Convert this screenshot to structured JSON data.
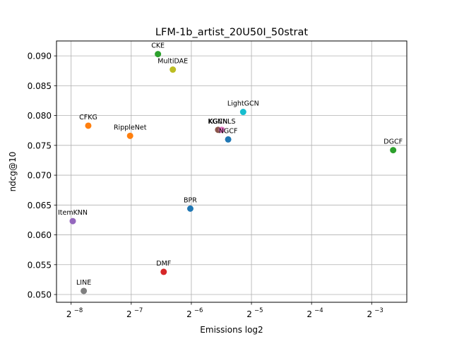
{
  "chart_data": {
    "type": "scatter",
    "title": "LFM-1b_artist_20U50I_50strat",
    "xlabel": "Emissions log2",
    "ylabel": "ndcg@10",
    "x_scale": "log2",
    "xlim": [
      0.0033,
      0.1874
    ],
    "ylim": [
      0.0487,
      0.0925
    ],
    "grid": true,
    "x_ticks": [
      {
        "value": 0.00390625,
        "base": "2",
        "exp": "−8"
      },
      {
        "value": 0.0078125,
        "base": "2",
        "exp": "−7"
      },
      {
        "value": 0.015625,
        "base": "2",
        "exp": "−6"
      },
      {
        "value": 0.03125,
        "base": "2",
        "exp": "−5"
      },
      {
        "value": 0.0625,
        "base": "2",
        "exp": "−4"
      },
      {
        "value": 0.125,
        "base": "2",
        "exp": "−3"
      }
    ],
    "y_ticks": [
      "0.050",
      "0.055",
      "0.060",
      "0.065",
      "0.070",
      "0.075",
      "0.080",
      "0.085",
      "0.090"
    ],
    "points": [
      {
        "label": "CKE",
        "x": 0.01063,
        "y": 0.0903,
        "color": "#2ca02c"
      },
      {
        "label": "MultiDAE",
        "x": 0.01262,
        "y": 0.0877,
        "color": "#bcbd22"
      },
      {
        "label": "LightGCN",
        "x": 0.0284,
        "y": 0.0806,
        "color": "#17becf"
      },
      {
        "label": "CFKG",
        "x": 0.00476,
        "y": 0.0783,
        "color": "#ff7f0e"
      },
      {
        "label": "RippleNet",
        "x": 0.00771,
        "y": 0.0766,
        "color": "#ff7f0e"
      },
      {
        "label": "KGCN",
        "x": 0.02128,
        "y": 0.0776,
        "color": "#8c564b"
      },
      {
        "label": "KGNNLS",
        "x": 0.02218,
        "y": 0.0776,
        "color": "#e377c2"
      },
      {
        "label": "NGCF",
        "x": 0.02389,
        "y": 0.076,
        "color": "#1f77b4"
      },
      {
        "label": "DGCF",
        "x": 0.1601,
        "y": 0.0742,
        "color": "#2ca02c"
      },
      {
        "label": "BPR",
        "x": 0.01544,
        "y": 0.0644,
        "color": "#1f77b4"
      },
      {
        "label": "ItemKNN",
        "x": 0.00398,
        "y": 0.0623,
        "color": "#9467bd"
      },
      {
        "label": "DMF",
        "x": 0.01136,
        "y": 0.0538,
        "color": "#d62728"
      },
      {
        "label": "LINE",
        "x": 0.00452,
        "y": 0.0506,
        "color": "#7f7f7f"
      }
    ]
  }
}
